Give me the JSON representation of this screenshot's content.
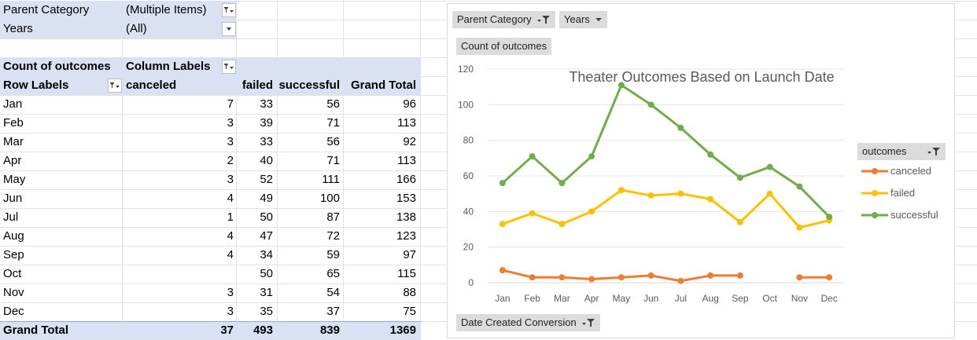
{
  "pivot": {
    "filters": [
      {
        "label": "Parent Category",
        "value": "(Multiple Items)",
        "filtered": true
      },
      {
        "label": "Years",
        "value": "(All)",
        "filtered": false
      }
    ],
    "count_label": "Count of outcomes",
    "column_labels": "Column Labels",
    "row_labels": "Row Labels",
    "columns": [
      "canceled",
      "failed",
      "successful",
      "Grand Total"
    ],
    "rows": [
      {
        "label": "Jan",
        "values": [
          "7",
          "33",
          "56",
          "96"
        ]
      },
      {
        "label": "Feb",
        "values": [
          "3",
          "39",
          "71",
          "113"
        ]
      },
      {
        "label": "Mar",
        "values": [
          "3",
          "33",
          "56",
          "92"
        ]
      },
      {
        "label": "Apr",
        "values": [
          "2",
          "40",
          "71",
          "113"
        ]
      },
      {
        "label": "May",
        "values": [
          "3",
          "52",
          "111",
          "166"
        ]
      },
      {
        "label": "Jun",
        "values": [
          "4",
          "49",
          "100",
          "153"
        ]
      },
      {
        "label": "Jul",
        "values": [
          "1",
          "50",
          "87",
          "138"
        ]
      },
      {
        "label": "Aug",
        "values": [
          "4",
          "47",
          "72",
          "123"
        ]
      },
      {
        "label": "Sep",
        "values": [
          "4",
          "34",
          "59",
          "97"
        ]
      },
      {
        "label": "Oct",
        "values": [
          "",
          "50",
          "65",
          "115"
        ]
      },
      {
        "label": "Nov",
        "values": [
          "3",
          "31",
          "54",
          "88"
        ]
      },
      {
        "label": "Dec",
        "values": [
          "3",
          "35",
          "37",
          "75"
        ]
      }
    ],
    "total": {
      "label": "Grand Total",
      "values": [
        "37",
        "493",
        "839",
        "1369"
      ]
    }
  },
  "chart_buttons": {
    "parent_category": "Parent Category",
    "years": "Years",
    "count": "Count of outcomes",
    "date": "Date Created Conversion",
    "legend_header": "outcomes"
  },
  "chart_data": {
    "type": "line",
    "title": "Theater Outcomes Based on Launch Date",
    "categories": [
      "Jan",
      "Feb",
      "Mar",
      "Apr",
      "May",
      "Jun",
      "Jul",
      "Aug",
      "Sep",
      "Oct",
      "Nov",
      "Dec"
    ],
    "series": [
      {
        "name": "canceled",
        "color": "#ed7d31",
        "values": [
          7,
          3,
          3,
          2,
          3,
          4,
          1,
          4,
          4,
          null,
          3,
          3
        ]
      },
      {
        "name": "failed",
        "color": "#ffc000",
        "values": [
          33,
          39,
          33,
          40,
          52,
          49,
          50,
          47,
          34,
          50,
          31,
          35
        ]
      },
      {
        "name": "successful",
        "color": "#70ad47",
        "values": [
          56,
          71,
          56,
          71,
          111,
          100,
          87,
          72,
          59,
          65,
          54,
          37
        ]
      }
    ],
    "ylim": [
      0,
      120
    ],
    "yticks": [
      "0",
      "20",
      "40",
      "60",
      "80",
      "100",
      "120"
    ],
    "legend": "right",
    "grid": true
  }
}
